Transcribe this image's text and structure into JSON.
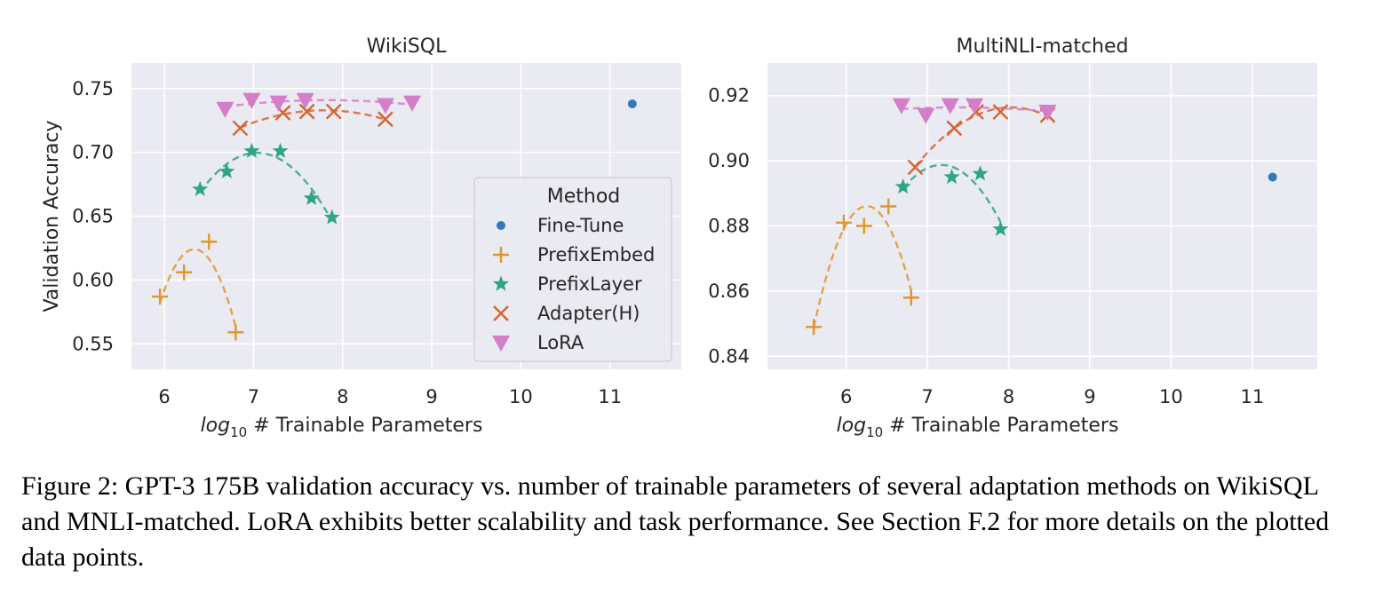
{
  "chart_data": [
    {
      "type": "scatter",
      "title": "WikiSQL",
      "xlabel_var": "log",
      "xlabel_sub": "10",
      "xlabel_rest": " # Trainable Parameters",
      "ylabel": "Validation Accuracy",
      "xlim": [
        5.63,
        11.8
      ],
      "ylim": [
        0.53,
        0.77
      ],
      "xticks": [
        "6",
        "7",
        "8",
        "9",
        "10",
        "11"
      ],
      "xtick_values": [
        6,
        7,
        8,
        9,
        10,
        11
      ],
      "yticks": [
        "0.55",
        "0.60",
        "0.65",
        "0.70",
        "0.75"
      ],
      "ytick_values": [
        0.55,
        0.6,
        0.65,
        0.7,
        0.75
      ],
      "grid": true,
      "legend": {
        "title": "Method",
        "placement": "lower-right",
        "entries": [
          "Fine-Tune",
          "PrefixEmbed",
          "PrefixLayer",
          "Adapter(H)",
          "LoRA"
        ]
      },
      "series": [
        {
          "name": "Fine-Tune",
          "marker": "dot",
          "color": "#2f7bb6",
          "fit": false,
          "x": [
            11.25
          ],
          "y": [
            0.738
          ]
        },
        {
          "name": "PrefixEmbed",
          "marker": "plus",
          "color": "#e0962b",
          "fit": true,
          "x": [
            5.95,
            6.22,
            6.5,
            6.8
          ],
          "y": [
            0.587,
            0.606,
            0.63,
            0.559
          ]
        },
        {
          "name": "PrefixLayer",
          "marker": "star",
          "color": "#2ea587",
          "fit": true,
          "x": [
            6.4,
            6.7,
            6.98,
            7.3,
            7.65,
            7.88
          ],
          "y": [
            0.671,
            0.685,
            0.701,
            0.701,
            0.664,
            0.649
          ]
        },
        {
          "name": "Adapter(H)",
          "marker": "x",
          "color": "#d6642b",
          "fit": true,
          "x": [
            6.85,
            7.33,
            7.6,
            7.9,
            8.48
          ],
          "y": [
            0.719,
            0.731,
            0.732,
            0.732,
            0.726
          ]
        },
        {
          "name": "LoRA",
          "marker": "tri",
          "color": "#d37ec6",
          "fit": true,
          "x": [
            6.68,
            6.98,
            7.28,
            7.58,
            8.48,
            8.78
          ],
          "y": [
            0.734,
            0.741,
            0.739,
            0.741,
            0.737,
            0.739
          ]
        }
      ]
    },
    {
      "type": "scatter",
      "title": "MultiNLI-matched",
      "xlabel_var": "log",
      "xlabel_sub": "10",
      "xlabel_rest": " # Trainable Parameters",
      "ylabel": "",
      "xlim": [
        5.03,
        11.8
      ],
      "ylim": [
        0.836,
        0.93
      ],
      "xticks": [
        "6",
        "7",
        "8",
        "9",
        "10",
        "11"
      ],
      "xtick_values": [
        6,
        7,
        8,
        9,
        10,
        11
      ],
      "yticks": [
        "0.84",
        "0.86",
        "0.88",
        "0.90",
        "0.92"
      ],
      "ytick_values": [
        0.84,
        0.86,
        0.88,
        0.9,
        0.92
      ],
      "grid": true,
      "series": [
        {
          "name": "Fine-Tune",
          "marker": "dot",
          "color": "#2f7bb6",
          "fit": false,
          "x": [
            11.25
          ],
          "y": [
            0.895
          ]
        },
        {
          "name": "PrefixEmbed",
          "marker": "plus",
          "color": "#e0962b",
          "fit": true,
          "x": [
            5.6,
            5.97,
            6.22,
            6.52,
            6.8
          ],
          "y": [
            0.849,
            0.881,
            0.88,
            0.886,
            0.858
          ]
        },
        {
          "name": "PrefixLayer",
          "marker": "star",
          "color": "#2ea587",
          "fit": true,
          "x": [
            6.7,
            7.3,
            7.65,
            7.9
          ],
          "y": [
            0.892,
            0.895,
            0.896,
            0.879
          ]
        },
        {
          "name": "Adapter(H)",
          "marker": "x",
          "color": "#d6642b",
          "fit": true,
          "x": [
            6.85,
            7.33,
            7.6,
            7.9,
            8.48
          ],
          "y": [
            0.898,
            0.91,
            0.915,
            0.915,
            0.914
          ]
        },
        {
          "name": "LoRA",
          "marker": "tri",
          "color": "#d37ec6",
          "fit": true,
          "x": [
            6.68,
            6.98,
            7.28,
            7.58,
            8.48
          ],
          "y": [
            0.917,
            0.914,
            0.917,
            0.917,
            0.915
          ]
        }
      ]
    }
  ],
  "caption": "Figure 2: GPT-3 175B validation accuracy vs. number of trainable parameters of several adaptation methods on WikiSQL and MNLI-matched. LoRA exhibits better scalability and task performance. See Section F.2 for more details on the plotted data points."
}
